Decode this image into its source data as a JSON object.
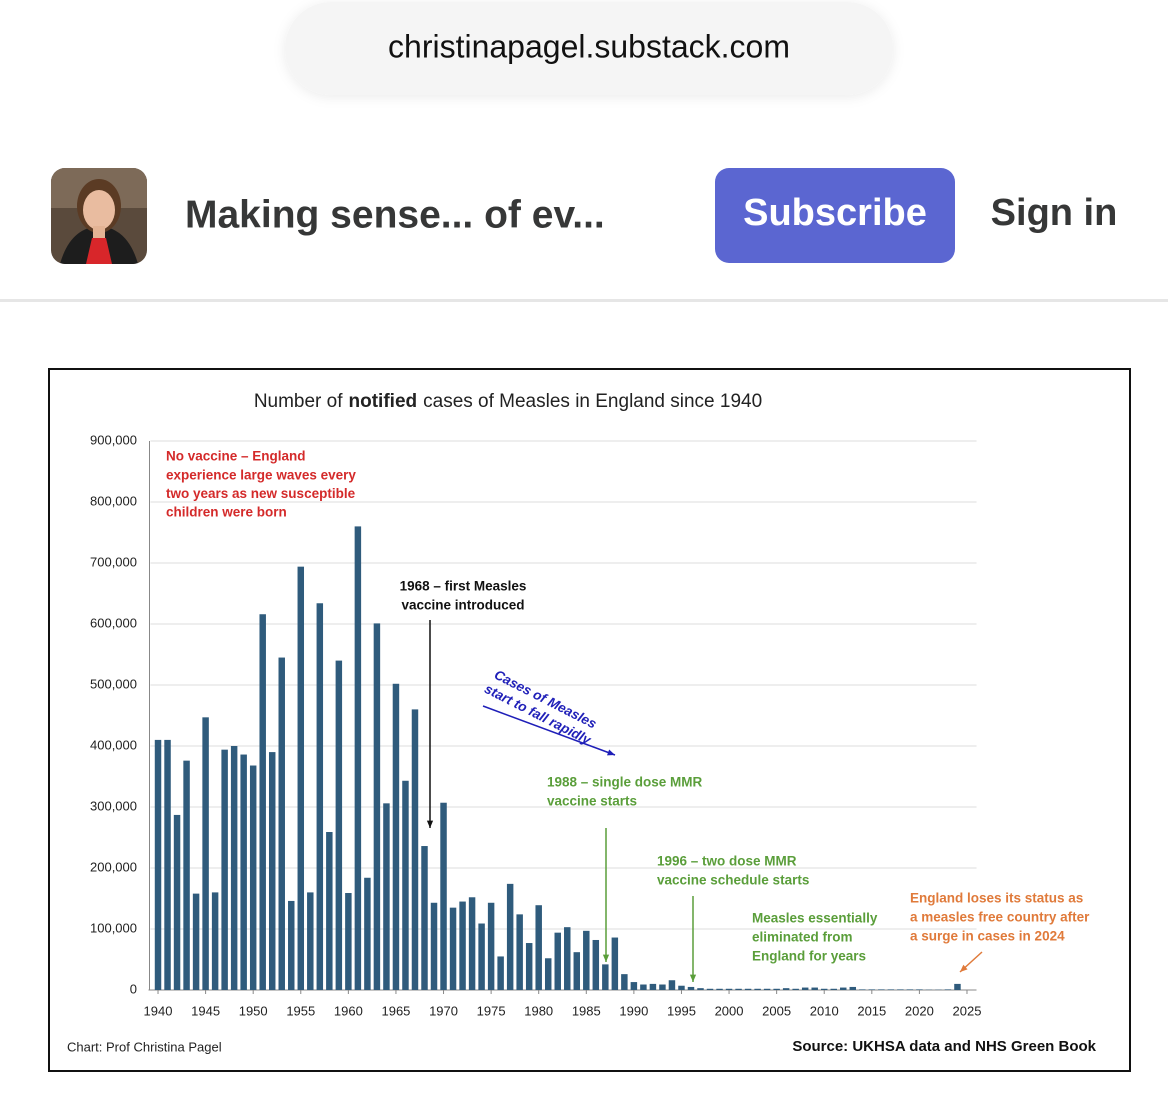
{
  "browser": {
    "url": "christinapagel.substack.com"
  },
  "header": {
    "publication": "Making sense... of ev...",
    "subscribe": "Subscribe",
    "sign_in": "Sign in"
  },
  "chart_data": {
    "type": "bar",
    "title": [
      "Number of",
      "notified",
      "cases of Measles in England since 1940"
    ],
    "color": "#2f5b7c",
    "x": [
      1940,
      1941,
      1942,
      1943,
      1944,
      1945,
      1946,
      1947,
      1948,
      1949,
      1950,
      1951,
      1952,
      1953,
      1954,
      1955,
      1956,
      1957,
      1958,
      1959,
      1960,
      1961,
      1962,
      1963,
      1964,
      1965,
      1966,
      1967,
      1968,
      1969,
      1970,
      1971,
      1972,
      1973,
      1974,
      1975,
      1976,
      1977,
      1978,
      1979,
      1980,
      1981,
      1982,
      1983,
      1984,
      1985,
      1986,
      1987,
      1988,
      1989,
      1990,
      1991,
      1992,
      1993,
      1994,
      1995,
      1996,
      1997,
      1998,
      1999,
      2000,
      2001,
      2002,
      2003,
      2004,
      2005,
      2006,
      2007,
      2008,
      2009,
      2010,
      2011,
      2012,
      2013,
      2014,
      2015,
      2016,
      2017,
      2018,
      2019,
      2020,
      2021,
      2022,
      2023,
      2024
    ],
    "values": [
      410000,
      410000,
      287000,
      376000,
      158000,
      447000,
      160000,
      394000,
      400000,
      386000,
      368000,
      616000,
      390000,
      545000,
      146000,
      694000,
      160000,
      634000,
      259000,
      540000,
      159000,
      760000,
      184000,
      601000,
      306000,
      502000,
      343000,
      460000,
      236000,
      143000,
      307000,
      135000,
      145000,
      152000,
      109000,
      143000,
      55000,
      174000,
      124000,
      77000,
      139000,
      52000,
      94000,
      103000,
      62000,
      97000,
      82000,
      42000,
      86000,
      26000,
      13000,
      9000,
      10000,
      9000,
      16000,
      7000,
      5000,
      3000,
      2000,
      2000,
      2000,
      2000,
      2000,
      2000,
      2000,
      2000,
      3000,
      2000,
      4000,
      4000,
      2000,
      2000,
      4000,
      5000,
      1000,
      1000,
      1000,
      1000,
      1000,
      1000,
      1000,
      500,
      500,
      1000,
      10000
    ],
    "xlim": [
      1939,
      2026
    ],
    "xticks": [
      1940,
      1945,
      1950,
      1955,
      1960,
      1965,
      1970,
      1975,
      1980,
      1985,
      1990,
      1995,
      2000,
      2005,
      2010,
      2015,
      2020,
      2025
    ],
    "ylim": [
      0,
      900000
    ],
    "yticks": [
      0,
      {
        "value": 100000,
        "label": "100,000"
      },
      {
        "value": 200000,
        "label": "200,000"
      },
      {
        "value": 300000,
        "label": "300,000"
      },
      {
        "value": 400000,
        "label": "400,000"
      },
      {
        "value": 500000,
        "label": "500,000"
      },
      {
        "value": 600000,
        "label": "600,000"
      },
      {
        "value": 700000,
        "label": "700,000"
      },
      {
        "value": 800000,
        "label": "800,000"
      },
      {
        "value": 900000,
        "label": "900,000"
      }
    ],
    "grid": true,
    "annotations": [
      {
        "lines": [
          "No vaccine – England",
          "experience large waves every",
          "two years as new susceptible",
          "children were born"
        ],
        "color": "#d42a2a"
      },
      {
        "lines": [
          "1968 – first Measles",
          "vaccine introduced"
        ],
        "color": "#111111"
      },
      {
        "lines": [
          "Cases of Measles",
          "start to fall rapidly"
        ],
        "color": "#1f1fb8"
      },
      {
        "lines": [
          "1988 – single dose MMR",
          "vaccine starts"
        ],
        "color": "#5a9e3a"
      },
      {
        "lines": [
          "1996 – two dose MMR",
          "vaccine schedule starts"
        ],
        "color": "#5a9e3a"
      },
      {
        "lines": [
          "Measles essentially",
          "eliminated from",
          "England for years"
        ],
        "color": "#5a9e3a"
      },
      {
        "lines": [
          "England loses its status as",
          "a measles free country after",
          "a surge in cases in 2024"
        ],
        "color": "#e07a3a"
      }
    ],
    "credit": "Chart: Prof Christina Pagel",
    "source": "Source: UKHSA data and NHS Green Book"
  }
}
